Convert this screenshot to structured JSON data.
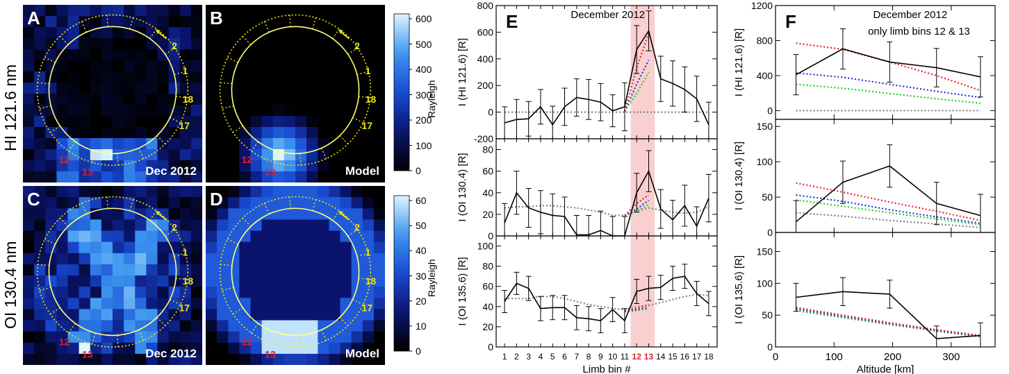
{
  "rows": {
    "top_label": "HI 121.6 nm",
    "bottom_label": "OI 130.4 nm"
  },
  "panels": {
    "A": {
      "letter": "A",
      "caption": "Dec 2012"
    },
    "B": {
      "letter": "B",
      "caption": "Model"
    },
    "C": {
      "letter": "C",
      "caption": "Dec 2012"
    },
    "D": {
      "letter": "D",
      "caption": "Model"
    }
  },
  "bin_labels": [
    "2",
    "1",
    "18",
    "17"
  ],
  "bin_labels_red": [
    "12",
    "13"
  ],
  "colorbars": [
    {
      "title": "Rayleigh",
      "ticks": [
        "600",
        "500",
        "400",
        "300",
        "200",
        "100",
        "0"
      ]
    },
    {
      "title": "Rayleigh",
      "ticks": [
        "60",
        "50",
        "40",
        "30",
        "20",
        "10",
        "0"
      ]
    }
  ],
  "colors": {
    "yellow": "#f2e60c",
    "red_label": "#e0202a",
    "highlight": "#f9cfcf",
    "series_red": "#e8202a",
    "series_blue": "#2030e0",
    "series_green": "#20d020",
    "series_gray": "#808080"
  },
  "chart_data": [
    {
      "type": "line",
      "panel": "E",
      "annotation": "December 2012",
      "x": [
        1,
        2,
        3,
        4,
        5,
        6,
        7,
        8,
        9,
        10,
        11,
        12,
        13,
        14,
        15,
        16,
        17,
        18
      ],
      "xticks": [
        "1",
        "2",
        "3",
        "4",
        "5",
        "6",
        "7",
        "8",
        "9",
        "10",
        "11",
        "12",
        "13",
        "14",
        "15",
        "16",
        "17",
        "18"
      ],
      "xticks_red": [
        "12",
        "13"
      ],
      "xlabel": "Limb bin #",
      "highlight_bins": [
        12,
        13
      ],
      "subplots": [
        {
          "ylabel": "I (HI 121.6) [R]",
          "ylim": [
            -200,
            800
          ],
          "yticks": [
            "-200",
            "0",
            "200",
            "400",
            "600",
            "800"
          ],
          "observed": [
            -80,
            -55,
            -50,
            40,
            -95,
            40,
            110,
            95,
            75,
            10,
            40,
            470,
            610,
            250,
            215,
            170,
            100,
            -95
          ],
          "err": [
            120,
            150,
            130,
            130,
            140,
            140,
            140,
            150,
            140,
            120,
            180,
            180,
            150,
            170,
            170,
            170,
            170,
            170
          ],
          "model_red": [
            null,
            null,
            null,
            null,
            null,
            null,
            null,
            null,
            null,
            null,
            10,
            330,
            590,
            null,
            null,
            null,
            null,
            null
          ],
          "model_blue": [
            null,
            null,
            null,
            null,
            null,
            null,
            null,
            null,
            null,
            null,
            8,
            210,
            390,
            null,
            null,
            null,
            null,
            null
          ],
          "model_green": [
            null,
            null,
            null,
            null,
            null,
            null,
            null,
            null,
            null,
            null,
            5,
            140,
            300,
            null,
            null,
            null,
            null,
            null
          ],
          "model_gray": [
            0,
            0,
            0,
            0,
            0,
            0,
            0,
            0,
            0,
            0,
            0,
            0,
            0,
            0,
            0,
            0,
            0,
            0
          ]
        },
        {
          "ylabel": "I (OI 130.4) [R]",
          "ylim": [
            0,
            90
          ],
          "yticks": [
            "0",
            "20",
            "40",
            "60",
            "80"
          ],
          "observed": [
            12,
            40,
            26,
            22,
            19,
            18,
            1,
            1,
            5,
            0,
            0,
            40,
            60,
            25,
            15,
            28,
            9,
            35
          ],
          "err": [
            18,
            20,
            18,
            20,
            20,
            18,
            18,
            18,
            18,
            18,
            18,
            18,
            19,
            18,
            18,
            19,
            18,
            22
          ],
          "model_red": [
            null,
            null,
            null,
            null,
            null,
            null,
            null,
            null,
            null,
            null,
            19,
            30,
            38,
            null,
            null,
            null,
            null,
            null
          ],
          "model_blue": [
            null,
            null,
            null,
            null,
            null,
            null,
            null,
            null,
            null,
            null,
            19,
            25,
            33,
            null,
            null,
            null,
            null,
            null
          ],
          "model_green": [
            null,
            null,
            null,
            null,
            null,
            null,
            null,
            null,
            null,
            null,
            19,
            23,
            29,
            null,
            null,
            null,
            null,
            null
          ],
          "model_gray": [
            26,
            27,
            27,
            28,
            28,
            27,
            26,
            24,
            22,
            19,
            19,
            23,
            26,
            24,
            22,
            21,
            22,
            27
          ]
        },
        {
          "ylabel": "I (OI 135.6) [R]",
          "ylim": [
            0,
            110
          ],
          "yticks": [
            "0",
            "20",
            "40",
            "60",
            "80",
            "100"
          ],
          "observed": [
            45,
            63,
            58,
            38,
            39,
            39,
            29,
            28,
            26,
            37,
            26,
            55,
            58,
            59,
            68,
            70,
            53,
            43
          ],
          "err": [
            11,
            11,
            12,
            12,
            12,
            12,
            12,
            12,
            12,
            12,
            12,
            12,
            12,
            12,
            12,
            12,
            12,
            12
          ],
          "model_red": [
            null,
            null,
            null,
            null,
            null,
            null,
            null,
            null,
            null,
            null,
            36,
            38,
            42,
            null,
            null,
            null,
            null,
            null
          ],
          "model_blue": [
            null,
            null,
            null,
            null,
            null,
            null,
            null,
            null,
            null,
            null,
            35,
            37,
            39,
            null,
            null,
            null,
            null,
            null
          ],
          "model_green": [
            null,
            null,
            null,
            null,
            null,
            null,
            null,
            null,
            null,
            null,
            35,
            36,
            38,
            null,
            null,
            null,
            null,
            null
          ],
          "model_gray": [
            48,
            48,
            48,
            50,
            50,
            48,
            45,
            42,
            40,
            38,
            37,
            40,
            41,
            44,
            47,
            50,
            52,
            51
          ]
        }
      ]
    },
    {
      "type": "line",
      "panel": "F",
      "annotation": "December 2012",
      "annotation2": "only limb bins 12 & 13",
      "x": [
        35,
        115,
        195,
        275,
        350
      ],
      "xlim": [
        0,
        375
      ],
      "xticks": [
        "0",
        "100",
        "200",
        "300"
      ],
      "xlabel": "Altitude [km]",
      "subplots": [
        {
          "ylabel": "I (HI 121.6) [R]",
          "ylim": [
            -100,
            1200
          ],
          "yticks": [
            "0",
            "400",
            "800",
            "1200"
          ],
          "observed": [
            410,
            705,
            555,
            490,
            385
          ],
          "err": [
            230,
            230,
            230,
            220,
            230
          ],
          "model_red": [
            770,
            700,
            555,
            400,
            230
          ],
          "model_blue": [
            430,
            380,
            300,
            220,
            150
          ],
          "model_green": [
            300,
            255,
            195,
            135,
            85
          ],
          "model_gray": [
            0,
            0,
            0,
            0,
            0
          ]
        },
        {
          "ylabel": "I (OI 130.4) [R]",
          "ylim": [
            0,
            160
          ],
          "yticks": [
            "0",
            "50",
            "100",
            "150"
          ],
          "observed": [
            15,
            71,
            94,
            41,
            24
          ],
          "err": [
            30,
            30,
            30,
            30,
            30
          ],
          "model_red": [
            70,
            57,
            43,
            30,
            17
          ],
          "model_blue": [
            53,
            44,
            32,
            22,
            13
          ],
          "model_green": [
            46,
            37,
            28,
            19,
            11
          ],
          "model_gray": [
            28,
            23,
            17,
            12,
            7
          ]
        },
        {
          "ylabel": "I (OI 135.6) [R]",
          "ylim": [
            0,
            180
          ],
          "yticks": [
            "0",
            "50",
            "100",
            "150"
          ],
          "observed": [
            78,
            87,
            83,
            13,
            18
          ],
          "err": [
            22,
            22,
            22,
            20,
            20
          ],
          "model_red": [
            62,
            50,
            38,
            27,
            18
          ],
          "model_blue": [
            60,
            48,
            37,
            26,
            17
          ],
          "model_green": [
            58,
            47,
            36,
            25,
            17
          ],
          "model_gray": [
            57,
            46,
            35,
            25,
            16
          ]
        }
      ]
    }
  ]
}
